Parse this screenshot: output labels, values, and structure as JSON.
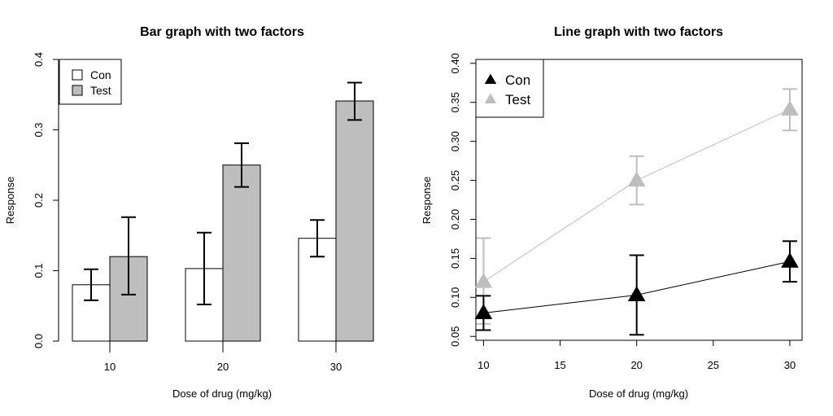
{
  "chart_data": [
    {
      "type": "bar",
      "title": "Bar graph with two factors",
      "xlabel": "Dose of drug (mg/kg)",
      "ylabel": "Response",
      "categories": [
        "10",
        "20",
        "30"
      ],
      "ylim": [
        0,
        0.4
      ],
      "yticks": [
        "0.0",
        "0.1",
        "0.2",
        "0.3",
        "0.4"
      ],
      "legend_position": "top-left",
      "series": [
        {
          "name": "Con",
          "color": "#ffffff",
          "values": [
            0.08,
            0.103,
            0.146
          ],
          "err_low": [
            0.058,
            0.052,
            0.12
          ],
          "err_high": [
            0.102,
            0.154,
            0.172
          ]
        },
        {
          "name": "Test",
          "color": "#bebebe",
          "values": [
            0.12,
            0.25,
            0.341
          ],
          "err_low": [
            0.066,
            0.219,
            0.314
          ],
          "err_high": [
            0.176,
            0.281,
            0.367
          ]
        }
      ]
    },
    {
      "type": "line",
      "title": "Line graph with two factors",
      "xlabel": "Dose of drug (mg/kg)",
      "ylabel": "Response",
      "x": [
        10,
        20,
        30
      ],
      "xticks": [
        "10",
        "15",
        "20",
        "25",
        "30"
      ],
      "xlim": [
        9.5,
        30.8
      ],
      "ylim": [
        0.045,
        0.405
      ],
      "yticks": [
        "0.05",
        "0.10",
        "0.15",
        "0.20",
        "0.25",
        "0.30",
        "0.35",
        "0.40"
      ],
      "legend_position": "top-left",
      "series": [
        {
          "name": "Con",
          "color": "#000000",
          "values": [
            0.08,
            0.103,
            0.146
          ],
          "err_low": [
            0.058,
            0.052,
            0.12
          ],
          "err_high": [
            0.102,
            0.154,
            0.172
          ]
        },
        {
          "name": "Test",
          "color": "#bebebe",
          "values": [
            0.12,
            0.25,
            0.341
          ],
          "err_low": [
            0.066,
            0.219,
            0.314
          ],
          "err_high": [
            0.176,
            0.281,
            0.367
          ]
        }
      ]
    }
  ]
}
